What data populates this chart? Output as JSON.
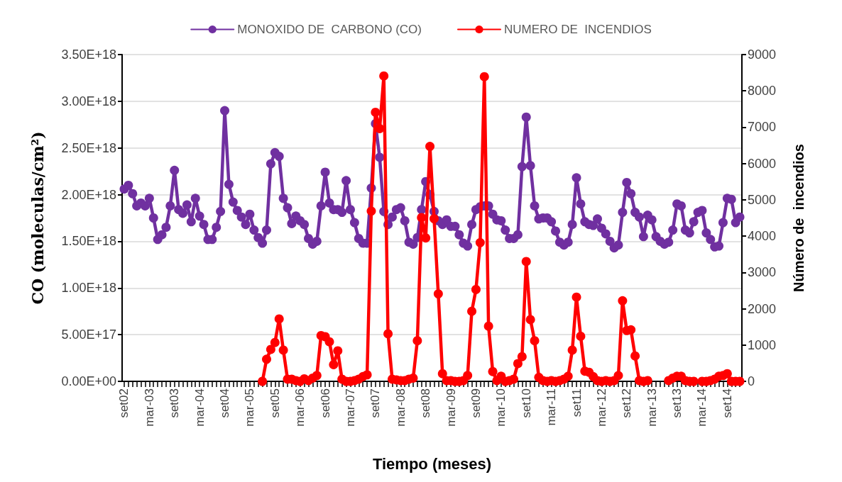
{
  "chart_data": {
    "type": "line",
    "xlabel": "Tiempo (meses)",
    "ylabel": "CO (moleculas/cm²)",
    "y2label": "Número de  incendios",
    "categories": [
      "set02",
      null,
      null,
      null,
      null,
      null,
      "mar-03",
      null,
      null,
      null,
      null,
      null,
      "set03",
      null,
      null,
      null,
      null,
      null,
      "mar-04",
      null,
      null,
      null,
      null,
      null,
      "set04",
      null,
      null,
      null,
      null,
      null,
      "mar-05",
      null,
      null,
      null,
      null,
      null,
      "set05",
      null,
      null,
      null,
      null,
      null,
      "mar-06",
      null,
      null,
      null,
      null,
      null,
      "set06",
      null,
      null,
      null,
      null,
      null,
      "mar-07",
      null,
      null,
      null,
      null,
      null,
      "set07",
      null,
      null,
      null,
      null,
      null,
      "mar-08",
      null,
      null,
      null,
      null,
      null,
      "set08",
      null,
      null,
      null,
      null,
      null,
      "mar-09",
      null,
      null,
      null,
      null,
      null,
      "set09",
      null,
      null,
      null,
      null,
      null,
      "mar-10",
      null,
      null,
      null,
      null,
      null,
      "set10",
      null,
      null,
      null,
      null,
      null,
      "mar-11",
      null,
      null,
      null,
      null,
      null,
      "set11",
      null,
      null,
      null,
      null,
      null,
      "mar-12",
      null,
      null,
      null,
      null,
      null,
      "set12",
      null,
      null,
      null,
      null,
      null,
      "mar-13",
      null,
      null,
      null,
      null,
      null,
      "set13",
      null,
      null,
      null,
      null,
      null,
      "mar-14",
      null,
      null,
      null,
      null,
      null,
      "set14",
      null,
      null,
      null
    ],
    "series": [
      {
        "name": "MONOXIDO DE  CARBONO (CO)",
        "color": "#7030a0",
        "values": [
          2.06e+18,
          2.1e+18,
          2.01e+18,
          1.88e+18,
          1.91e+18,
          1.88e+18,
          1.96e+18,
          1.75e+18,
          1.52e+18,
          1.57e+18,
          1.65e+18,
          1.88e+18,
          2.26e+18,
          1.84e+18,
          1.8e+18,
          1.89e+18,
          1.71e+18,
          1.96e+18,
          1.77e+18,
          1.68e+18,
          1.52e+18,
          1.52e+18,
          1.65e+18,
          1.82e+18,
          2.9e+18,
          2.11e+18,
          1.92e+18,
          1.83e+18,
          1.76e+18,
          1.68e+18,
          1.79e+18,
          1.62e+18,
          1.54e+18,
          1.48e+18,
          1.62e+18,
          2.33e+18,
          2.45e+18,
          2.41e+18,
          1.96e+18,
          1.86e+18,
          1.69e+18,
          1.77e+18,
          1.72e+18,
          1.68e+18,
          1.53e+18,
          1.47e+18,
          1.5e+18,
          1.88e+18,
          2.24e+18,
          1.91e+18,
          1.84e+18,
          1.84e+18,
          1.81e+18,
          2.15e+18,
          1.84e+18,
          1.7e+18,
          1.53e+18,
          1.48e+18,
          1.48e+18,
          2.07e+18,
          2.76e+18,
          2.4e+18,
          1.82e+18,
          1.68e+18,
          1.76e+18,
          1.84e+18,
          1.86e+18,
          1.72e+18,
          1.49e+18,
          1.47e+18,
          1.54e+18,
          1.84e+18,
          2.14e+18,
          2e+18,
          1.82e+18,
          1.72e+18,
          1.68e+18,
          1.73e+18,
          1.66e+18,
          1.66e+18,
          1.57e+18,
          1.48e+18,
          1.45e+18,
          1.68e+18,
          1.84e+18,
          1.87e+18,
          1.88e+18,
          1.88e+18,
          1.79e+18,
          1.73e+18,
          1.72e+18,
          1.62e+18,
          1.53e+18,
          1.53e+18,
          1.57e+18,
          2.3e+18,
          2.83e+18,
          2.31e+18,
          1.88e+18,
          1.74e+18,
          1.75e+18,
          1.75e+18,
          1.71e+18,
          1.61e+18,
          1.49e+18,
          1.46e+18,
          1.49e+18,
          1.68e+18,
          2.18e+18,
          1.9e+18,
          1.71e+18,
          1.68e+18,
          1.67e+18,
          1.74e+18,
          1.64e+18,
          1.58e+18,
          1.5e+18,
          1.43e+18,
          1.46e+18,
          1.81e+18,
          2.13e+18,
          2.01e+18,
          1.81e+18,
          1.76e+18,
          1.55e+18,
          1.78e+18,
          1.73e+18,
          1.55e+18,
          1.5e+18,
          1.47e+18,
          1.49e+18,
          1.62e+18,
          1.9e+18,
          1.88e+18,
          1.62e+18,
          1.59e+18,
          1.71e+18,
          1.81e+18,
          1.83e+18,
          1.59e+18,
          1.52e+18,
          1.44e+18,
          1.45e+18,
          1.7e+18,
          1.96e+18,
          1.95e+18,
          1.7e+18,
          1.76e+18
        ]
      },
      {
        "name": "NUMERO DE  INCENDIOS",
        "color": "#ff0000",
        "axis": "y2",
        "values": [
          null,
          null,
          null,
          null,
          null,
          null,
          null,
          null,
          null,
          null,
          null,
          null,
          null,
          null,
          null,
          null,
          null,
          null,
          null,
          null,
          null,
          null,
          null,
          null,
          null,
          null,
          null,
          null,
          null,
          null,
          null,
          null,
          null,
          0,
          610,
          880,
          1070,
          1720,
          860,
          60,
          60,
          20,
          0,
          70,
          20,
          90,
          160,
          1260,
          1230,
          1090,
          460,
          840,
          60,
          0,
          0,
          20,
          60,
          130,
          180,
          4690,
          7410,
          6960,
          8410,
          1310,
          60,
          40,
          20,
          20,
          60,
          90,
          1120,
          4510,
          3950,
          6470,
          4480,
          2410,
          210,
          20,
          20,
          0,
          0,
          20,
          160,
          1930,
          2530,
          3820,
          8390,
          1520,
          270,
          20,
          140,
          0,
          20,
          60,
          490,
          680,
          3300,
          1700,
          1120,
          110,
          20,
          0,
          20,
          0,
          20,
          60,
          140,
          860,
          2320,
          1240,
          280,
          250,
          130,
          20,
          0,
          20,
          0,
          20,
          160,
          2220,
          1400,
          1420,
          700,
          20,
          0,
          20,
          null,
          null,
          null,
          null,
          20,
          90,
          140,
          140,
          20,
          0,
          0,
          null,
          0,
          0,
          20,
          60,
          140,
          160,
          210,
          0,
          0,
          0
        ]
      }
    ],
    "ylim": [
      0,
      3.5e+18
    ],
    "yticks": [
      {
        "value": 0,
        "label": "0.00E+00"
      },
      {
        "value": 5e+17,
        "label": "5.00E+17"
      },
      {
        "value": 1e+18,
        "label": "1.00E+18"
      },
      {
        "value": 1.5e+18,
        "label": "1.50E+18"
      },
      {
        "value": 2e+18,
        "label": "2.00E+18"
      },
      {
        "value": 2.5e+18,
        "label": "2.50E+18"
      },
      {
        "value": 3e+18,
        "label": "3.00E+18"
      },
      {
        "value": 3.5e+18,
        "label": "3.50E+18"
      }
    ],
    "y2lim": [
      0,
      9000
    ],
    "y2ticks": [
      0,
      1000,
      2000,
      3000,
      4000,
      5000,
      6000,
      7000,
      8000,
      9000
    ],
    "grid": "y",
    "legend": "top",
    "marker": "circle",
    "line_style": "solid"
  }
}
